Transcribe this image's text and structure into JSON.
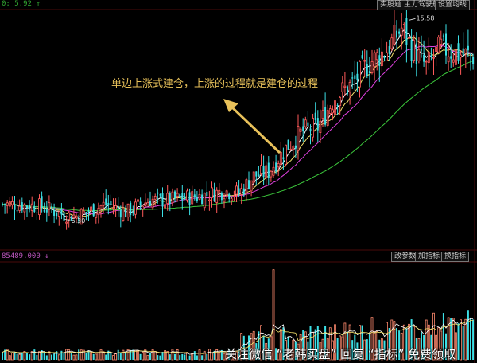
{
  "header": {
    "price_label": "0: 5.92 ↑",
    "buttons": [
      "实股题",
      "主力驾驶舱",
      "设置均线"
    ]
  },
  "volume_panel": {
    "label": "85489.000 ↓",
    "buttons": [
      "改参数",
      "加指标",
      "换指标"
    ]
  },
  "annotation": "单边上涨式建仓，上涨的过程就是建仓的过程",
  "watermark": "关注微信 “老韩实盘” 回复 “指标” 免费领取",
  "colors": {
    "up": "#ff5a5a",
    "down": "#3ce0e6",
    "vol_up": "#ff8a6e",
    "vol_down": "#3ce0e6",
    "ma5": "#ffffff",
    "ma10": "#f5e36c",
    "ma20": "#e040e0",
    "ma60": "#3cc83c",
    "arrow": "#e8c15a"
  },
  "chart_data": {
    "type": "candlestick",
    "price_min_ref": 5,
    "price_max_ref": 16,
    "high_marker": {
      "value": 15.58,
      "label": "15.58"
    },
    "low_marker": {
      "value": 6.3,
      "label": "6.30"
    },
    "anchors": [
      [
        0,
        7.0
      ],
      [
        15,
        6.9
      ],
      [
        20,
        6.7
      ],
      [
        25,
        6.5
      ],
      [
        30,
        6.45
      ],
      [
        36,
        6.7
      ],
      [
        42,
        7.0
      ],
      [
        50,
        6.6
      ],
      [
        60,
        7.2
      ],
      [
        66,
        7.15
      ],
      [
        75,
        7.3
      ],
      [
        82,
        7.4
      ],
      [
        90,
        7.6
      ],
      [
        96,
        7.5
      ],
      [
        102,
        8.3
      ],
      [
        108,
        8.5
      ],
      [
        115,
        9.6
      ],
      [
        122,
        10.4
      ],
      [
        128,
        10.6
      ],
      [
        135,
        12.0
      ],
      [
        142,
        12.6
      ],
      [
        148,
        13.5
      ],
      [
        156,
        14.2
      ],
      [
        162,
        15.2
      ],
      [
        166,
        14.3
      ],
      [
        172,
        13.4
      ],
      [
        178,
        14.3
      ],
      [
        185,
        14.0
      ],
      [
        191,
        13.9
      ]
    ],
    "volume": {
      "base": 4,
      "ramp_start": 95,
      "ramp_gain": 18,
      "spikes": {
        "110": 85,
        "150": 40,
        "160": 30
      }
    }
  }
}
